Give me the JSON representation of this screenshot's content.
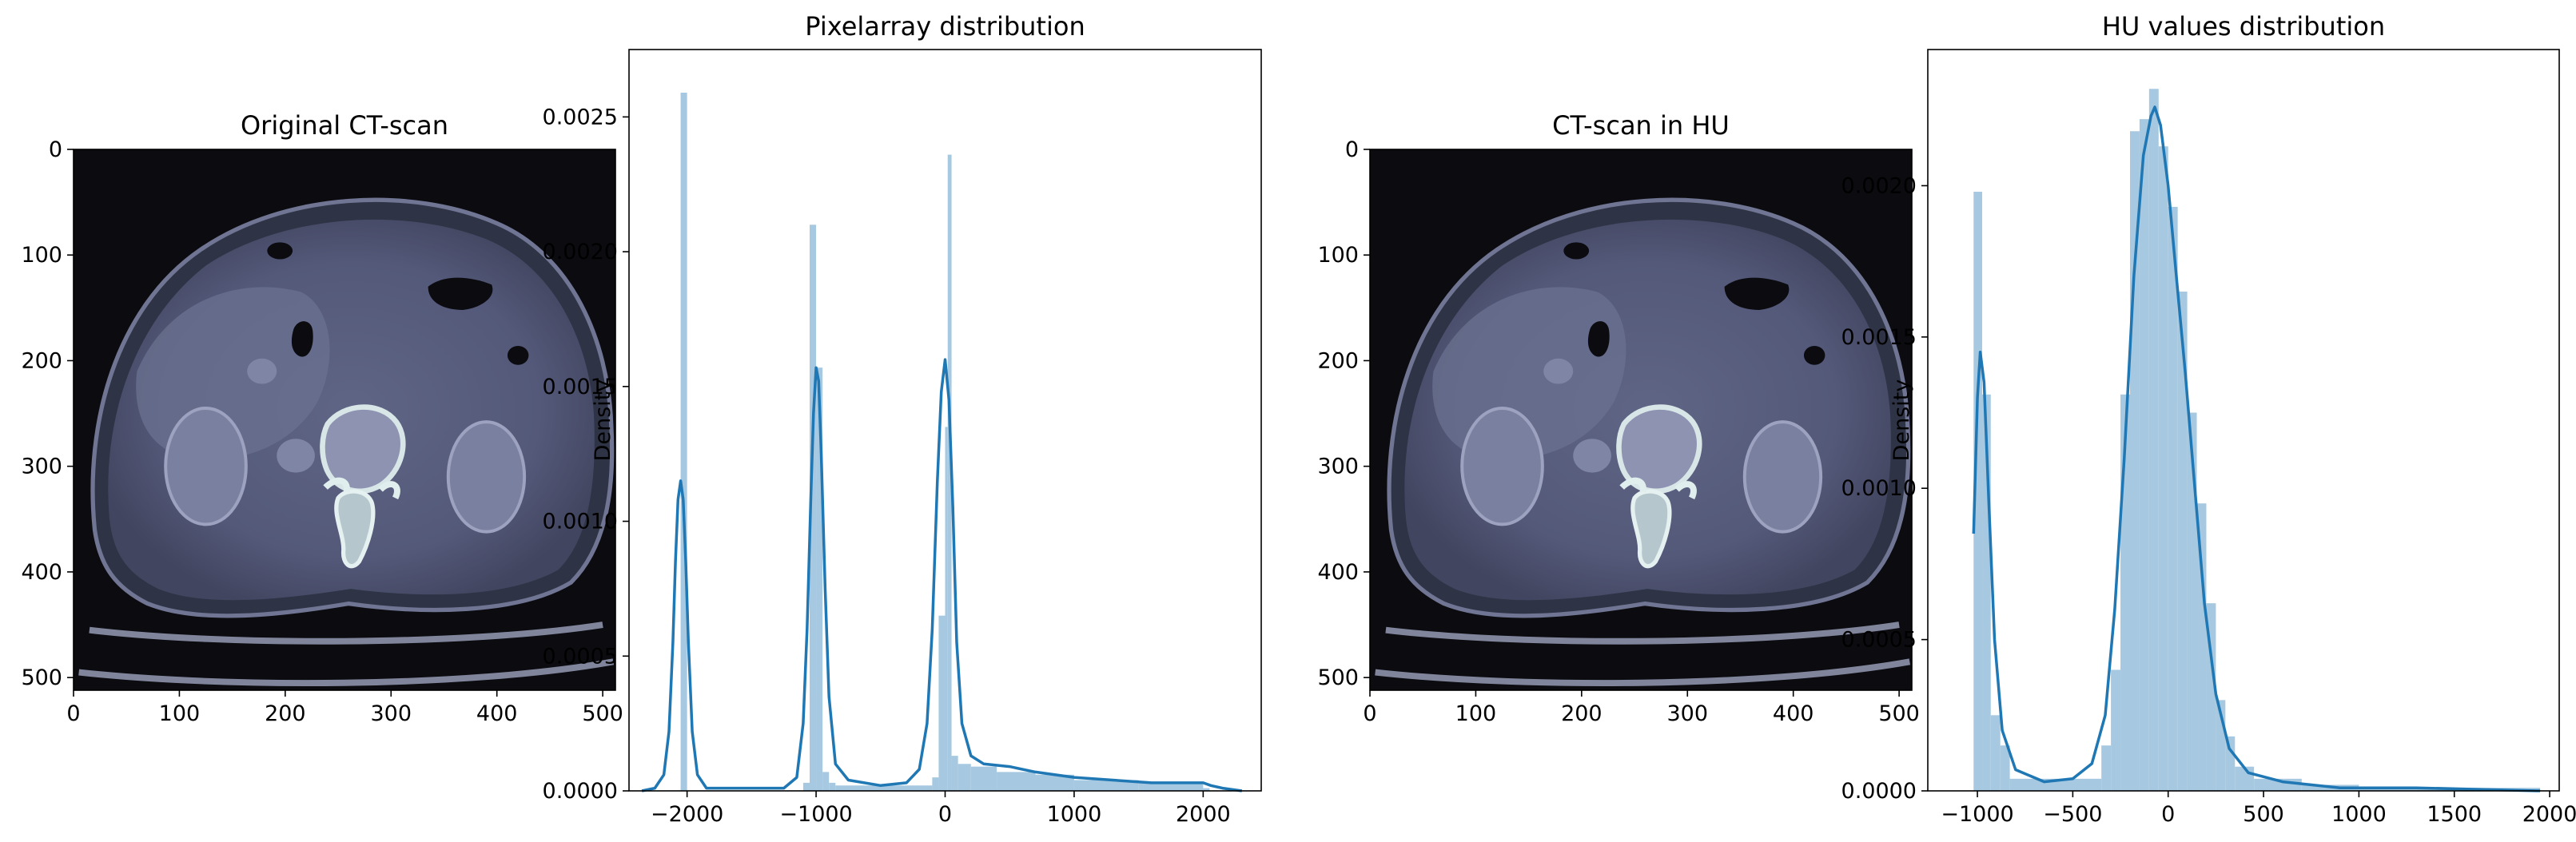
{
  "chart_data": [
    {
      "type": "image",
      "title": "Original CT-scan",
      "xlim": [
        0,
        512
      ],
      "ylim": [
        512,
        0
      ],
      "xticks": [
        "0",
        "100",
        "200",
        "300",
        "400",
        "500"
      ],
      "yticks": [
        "0",
        "100",
        "200",
        "300",
        "400",
        "500"
      ],
      "colormap": "bone"
    },
    {
      "type": "histogram",
      "title": "Pixelarray distribution",
      "xlabel": "",
      "ylabel": "Density",
      "xlim": [
        -2450,
        2450
      ],
      "ylim": [
        0,
        0.00275
      ],
      "xticks": [
        "−2000",
        "−1000",
        "0",
        "1000",
        "2000"
      ],
      "yticks": [
        "0.0000",
        "0.0005",
        "0.0010",
        "0.0015",
        "0.0020",
        "0.0025"
      ],
      "bar_color": "#a6c8e0",
      "line_color": "#1f77b4",
      "bars": [
        {
          "x0": -2050,
          "x1": -2000,
          "y": 0.00259
        },
        {
          "x0": -1100,
          "x1": -1050,
          "y": 3e-05
        },
        {
          "x0": -1050,
          "x1": -1000,
          "y": 0.0021
        },
        {
          "x0": -1000,
          "x1": -950,
          "y": 0.00157
        },
        {
          "x0": -950,
          "x1": -900,
          "y": 7e-05
        },
        {
          "x0": -900,
          "x1": -850,
          "y": 3e-05
        },
        {
          "x0": -850,
          "x1": -100,
          "y": 2e-05
        },
        {
          "x0": -100,
          "x1": -50,
          "y": 5e-05
        },
        {
          "x0": -50,
          "x1": 0,
          "y": 0.00065
        },
        {
          "x0": 0,
          "x1": 20,
          "y": 0.00135
        },
        {
          "x0": 20,
          "x1": 50,
          "y": 0.00236
        },
        {
          "x0": 50,
          "x1": 100,
          "y": 0.00013
        },
        {
          "x0": 100,
          "x1": 200,
          "y": 0.0001
        },
        {
          "x0": 200,
          "x1": 400,
          "y": 9e-05
        },
        {
          "x0": 400,
          "x1": 700,
          "y": 7e-05
        },
        {
          "x0": 700,
          "x1": 1000,
          "y": 6e-05
        },
        {
          "x0": 1000,
          "x1": 1500,
          "y": 4e-05
        },
        {
          "x0": 1500,
          "x1": 2000,
          "y": 3e-05
        },
        {
          "x0": 2000,
          "x1": 2050,
          "y": 1e-05
        }
      ],
      "kde": [
        [
          -2350,
          0
        ],
        [
          -2250,
          1e-05
        ],
        [
          -2180,
          6e-05
        ],
        [
          -2140,
          0.00022
        ],
        [
          -2110,
          0.00055
        ],
        [
          -2090,
          0.00085
        ],
        [
          -2070,
          0.00108
        ],
        [
          -2050,
          0.00115
        ],
        [
          -2030,
          0.00108
        ],
        [
          -2010,
          0.00085
        ],
        [
          -1990,
          0.00055
        ],
        [
          -1960,
          0.00022
        ],
        [
          -1920,
          6e-05
        ],
        [
          -1850,
          1e-05
        ],
        [
          -1250,
          1e-05
        ],
        [
          -1150,
          5e-05
        ],
        [
          -1100,
          0.00025
        ],
        [
          -1070,
          0.0006
        ],
        [
          -1040,
          0.0011
        ],
        [
          -1020,
          0.0014
        ],
        [
          -1000,
          0.00157
        ],
        [
          -980,
          0.00152
        ],
        [
          -960,
          0.00125
        ],
        [
          -930,
          0.00075
        ],
        [
          -900,
          0.00035
        ],
        [
          -850,
          0.0001
        ],
        [
          -750,
          4e-05
        ],
        [
          -500,
          2e-05
        ],
        [
          -300,
          3e-05
        ],
        [
          -200,
          8e-05
        ],
        [
          -140,
          0.00025
        ],
        [
          -100,
          0.0006
        ],
        [
          -60,
          0.00115
        ],
        [
          -30,
          0.00148
        ],
        [
          0,
          0.0016
        ],
        [
          30,
          0.00145
        ],
        [
          60,
          0.00105
        ],
        [
          90,
          0.00055
        ],
        [
          130,
          0.00025
        ],
        [
          200,
          0.00013
        ],
        [
          300,
          0.0001
        ],
        [
          500,
          9e-05
        ],
        [
          700,
          7e-05
        ],
        [
          1000,
          5e-05
        ],
        [
          1300,
          4e-05
        ],
        [
          1600,
          3e-05
        ],
        [
          1900,
          3e-05
        ],
        [
          2000,
          3e-05
        ],
        [
          2060,
          2e-05
        ],
        [
          2150,
          1e-05
        ],
        [
          2300,
          0
        ]
      ]
    },
    {
      "type": "image",
      "title": "CT-scan in HU",
      "xlim": [
        0,
        512
      ],
      "ylim": [
        512,
        0
      ],
      "xticks": [
        "0",
        "100",
        "200",
        "300",
        "400",
        "500"
      ],
      "yticks": [
        "0",
        "100",
        "200",
        "300",
        "400",
        "500"
      ],
      "colormap": "bone"
    },
    {
      "type": "histogram",
      "title": "HU values distribution",
      "xlabel": "",
      "ylabel": "Density",
      "xlim": [
        -1260,
        2050
      ],
      "ylim": [
        0,
        0.00245
      ],
      "xticks": [
        "−1000",
        "−500",
        "0",
        "500",
        "1000",
        "1500",
        "2000"
      ],
      "yticks": [
        "0.0000",
        "0.0005",
        "0.0010",
        "0.0015",
        "0.0020"
      ],
      "bar_color": "#a6c8e0",
      "line_color": "#1f77b4",
      "bars": [
        {
          "x0": -1020,
          "x1": -975,
          "y": 0.00198
        },
        {
          "x0": -975,
          "x1": -930,
          "y": 0.00131
        },
        {
          "x0": -930,
          "x1": -880,
          "y": 0.00025
        },
        {
          "x0": -880,
          "x1": -830,
          "y": 0.00015
        },
        {
          "x0": -830,
          "x1": -600,
          "y": 4e-05
        },
        {
          "x0": -600,
          "x1": -350,
          "y": 4e-05
        },
        {
          "x0": -350,
          "x1": -300,
          "y": 0.00015
        },
        {
          "x0": -300,
          "x1": -250,
          "y": 0.0004
        },
        {
          "x0": -250,
          "x1": -200,
          "y": 0.00131
        },
        {
          "x0": -200,
          "x1": -150,
          "y": 0.00218
        },
        {
          "x0": -150,
          "x1": -100,
          "y": 0.00222
        },
        {
          "x0": -100,
          "x1": -50,
          "y": 0.00232
        },
        {
          "x0": -50,
          "x1": 0,
          "y": 0.00213
        },
        {
          "x0": 0,
          "x1": 50,
          "y": 0.00193
        },
        {
          "x0": 50,
          "x1": 100,
          "y": 0.00165
        },
        {
          "x0": 100,
          "x1": 150,
          "y": 0.00125
        },
        {
          "x0": 150,
          "x1": 200,
          "y": 0.00095
        },
        {
          "x0": 200,
          "x1": 250,
          "y": 0.00062
        },
        {
          "x0": 250,
          "x1": 300,
          "y": 0.0003
        },
        {
          "x0": 300,
          "x1": 350,
          "y": 0.00018
        },
        {
          "x0": 350,
          "x1": 450,
          "y": 8e-05
        },
        {
          "x0": 450,
          "x1": 700,
          "y": 4e-05
        },
        {
          "x0": 700,
          "x1": 1000,
          "y": 2e-05
        },
        {
          "x0": 1000,
          "x1": 1950,
          "y": 1e-05
        }
      ],
      "kde": [
        [
          -1020,
          0.00085
        ],
        [
          -1000,
          0.0013
        ],
        [
          -985,
          0.00145
        ],
        [
          -965,
          0.00135
        ],
        [
          -940,
          0.00095
        ],
        [
          -910,
          0.0005
        ],
        [
          -870,
          0.0002
        ],
        [
          -800,
          7e-05
        ],
        [
          -650,
          3e-05
        ],
        [
          -500,
          4e-05
        ],
        [
          -400,
          9e-05
        ],
        [
          -330,
          0.00025
        ],
        [
          -280,
          0.0006
        ],
        [
          -230,
          0.0011
        ],
        [
          -180,
          0.0017
        ],
        [
          -130,
          0.0021
        ],
        [
          -90,
          0.00223
        ],
        [
          -70,
          0.00226
        ],
        [
          -40,
          0.0022
        ],
        [
          0,
          0.002
        ],
        [
          40,
          0.00172
        ],
        [
          90,
          0.00138
        ],
        [
          140,
          0.001
        ],
        [
          190,
          0.00062
        ],
        [
          250,
          0.00032
        ],
        [
          320,
          0.00014
        ],
        [
          420,
          6e-05
        ],
        [
          600,
          3e-05
        ],
        [
          900,
          1e-05
        ],
        [
          1300,
          1e-05
        ],
        [
          1950,
          0
        ]
      ]
    }
  ]
}
